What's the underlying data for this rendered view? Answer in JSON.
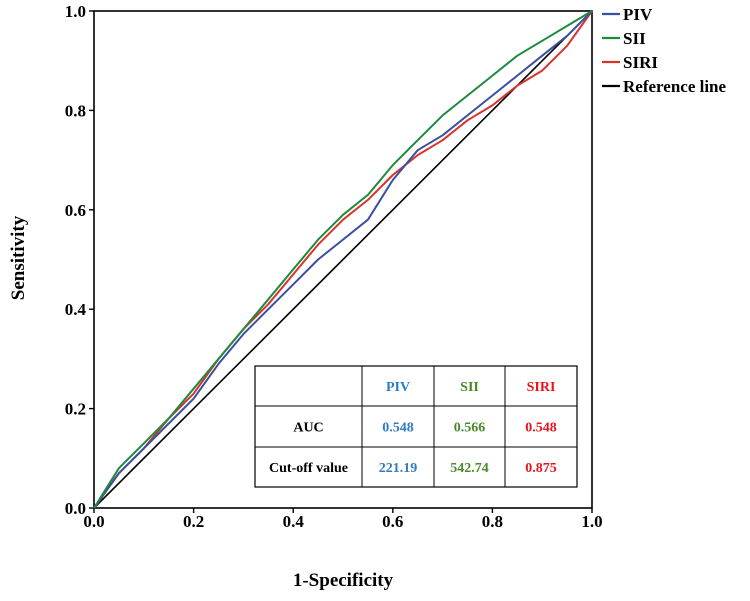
{
  "chart_data": {
    "type": "line",
    "title": "",
    "xlabel": "1-Specificity",
    "ylabel": "Sensitivity",
    "xlim": [
      0,
      1
    ],
    "ylim": [
      0,
      1
    ],
    "x_ticks": [
      "0.0",
      "0.2",
      "0.4",
      "0.6",
      "0.8",
      "1.0"
    ],
    "y_ticks": [
      "0.0",
      "0.2",
      "0.4",
      "0.6",
      "0.8",
      "1.0"
    ],
    "legend_position": "top-right",
    "series": [
      {
        "name": "PIV",
        "color": "#3a4fa0",
        "x": [
          0,
          0.05,
          0.1,
          0.15,
          0.2,
          0.25,
          0.3,
          0.35,
          0.4,
          0.45,
          0.5,
          0.55,
          0.6,
          0.65,
          0.7,
          0.75,
          0.8,
          0.85,
          0.9,
          0.95,
          1.0
        ],
        "y": [
          0,
          0.07,
          0.12,
          0.17,
          0.22,
          0.29,
          0.35,
          0.4,
          0.45,
          0.5,
          0.54,
          0.58,
          0.66,
          0.72,
          0.75,
          0.79,
          0.83,
          0.87,
          0.91,
          0.95,
          1.0
        ]
      },
      {
        "name": "SII",
        "color": "#1e8a3c",
        "x": [
          0,
          0.05,
          0.1,
          0.15,
          0.2,
          0.25,
          0.3,
          0.35,
          0.4,
          0.45,
          0.5,
          0.55,
          0.6,
          0.65,
          0.7,
          0.75,
          0.8,
          0.85,
          0.9,
          0.95,
          1.0
        ],
        "y": [
          0,
          0.08,
          0.13,
          0.18,
          0.24,
          0.3,
          0.36,
          0.42,
          0.48,
          0.54,
          0.59,
          0.63,
          0.69,
          0.74,
          0.79,
          0.83,
          0.87,
          0.91,
          0.94,
          0.97,
          1.0
        ]
      },
      {
        "name": "SIRI",
        "color": "#d9342b",
        "x": [
          0,
          0.05,
          0.1,
          0.15,
          0.2,
          0.25,
          0.3,
          0.35,
          0.4,
          0.45,
          0.5,
          0.55,
          0.6,
          0.65,
          0.7,
          0.75,
          0.8,
          0.85,
          0.9,
          0.95,
          1.0
        ],
        "y": [
          0,
          0.07,
          0.12,
          0.18,
          0.23,
          0.3,
          0.36,
          0.41,
          0.47,
          0.53,
          0.58,
          0.62,
          0.67,
          0.71,
          0.74,
          0.78,
          0.81,
          0.85,
          0.88,
          0.93,
          1.0
        ]
      },
      {
        "name": "Reference line",
        "color": "#000000",
        "x": [
          0,
          1
        ],
        "y": [
          0,
          1
        ]
      }
    ],
    "table": {
      "headers": [
        "",
        "PIV",
        "SII",
        "SIRI"
      ],
      "header_colors": [
        "#000000",
        "#2e7bc4",
        "#4a8a2a",
        "#e8141c"
      ],
      "rows": [
        {
          "label": "AUC",
          "values": [
            "0.548",
            "0.566",
            "0.548"
          ]
        },
        {
          "label": "Cut-off value",
          "values": [
            "221.19",
            "542.74",
            "0.875"
          ]
        }
      ]
    }
  }
}
